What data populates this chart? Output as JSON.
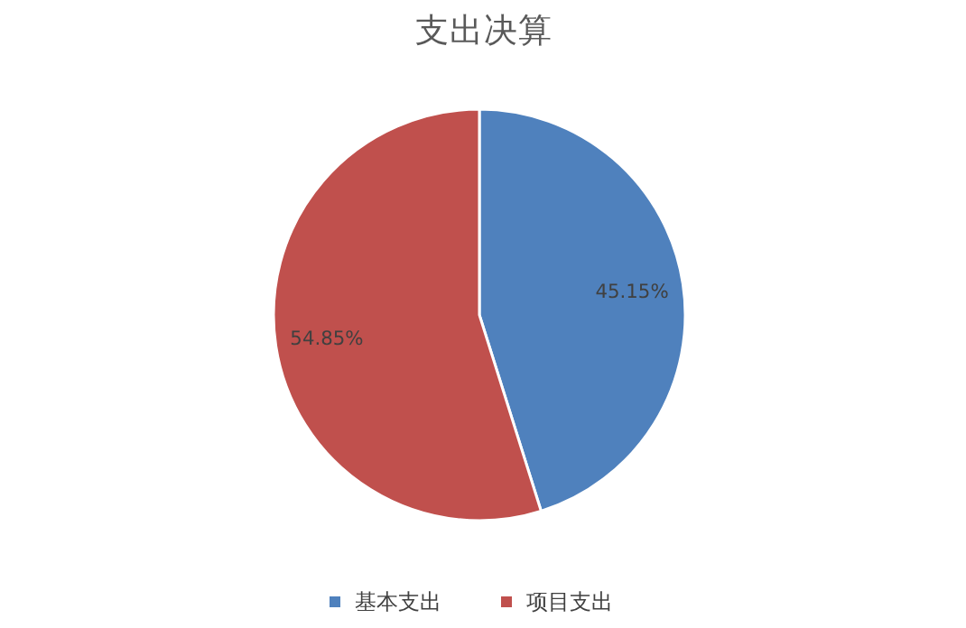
{
  "chart_data": {
    "type": "pie",
    "title": "支出决算",
    "categories": [
      "基本支出",
      "项目支出"
    ],
    "values": [
      45.15,
      54.85
    ],
    "colors": [
      "#4f81bd",
      "#c0504d"
    ],
    "value_labels": [
      "45.15%",
      "54.85%"
    ],
    "legend": "bottom"
  }
}
